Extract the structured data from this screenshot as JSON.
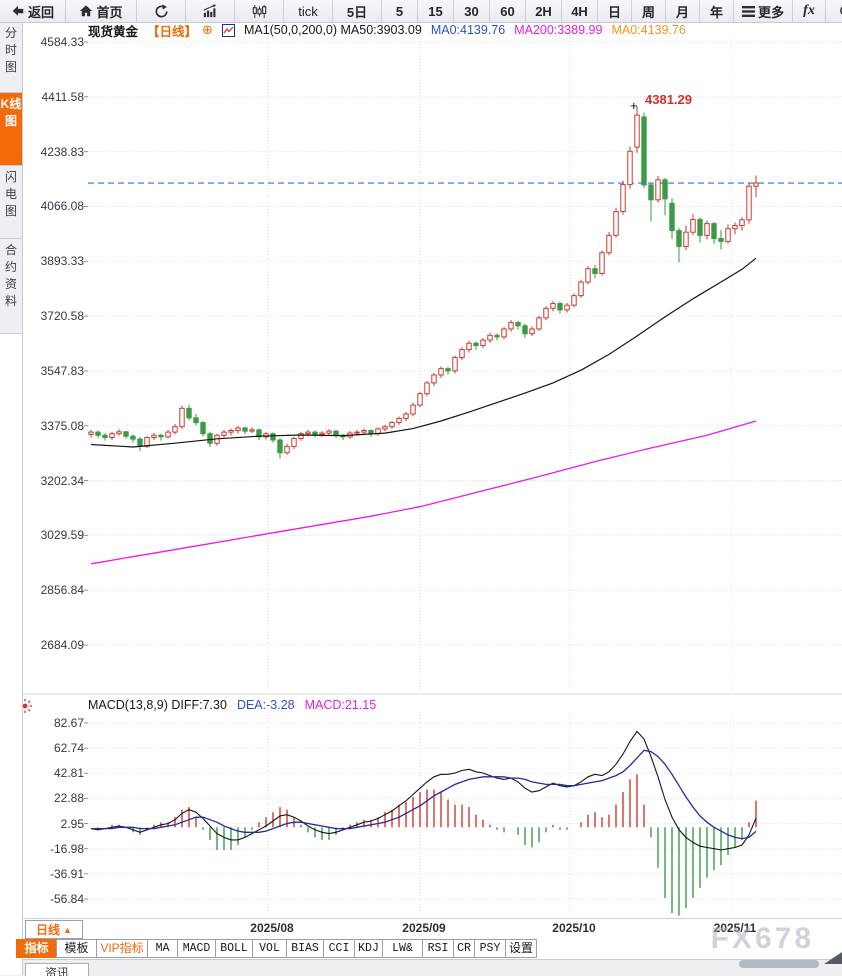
{
  "toolbar": {
    "items": [
      {
        "label": "返回",
        "icon": "back-icon"
      },
      {
        "label": "首页",
        "icon": "home-icon"
      },
      {
        "icon": "refresh-icon"
      },
      {
        "icon": "bar-chart-icon"
      },
      {
        "icon": "candle-chart-icon"
      },
      {
        "label": "tick"
      },
      {
        "label": "5日"
      },
      {
        "label": "5"
      },
      {
        "label": "15"
      },
      {
        "label": "30"
      },
      {
        "label": "60"
      },
      {
        "label": "2H"
      },
      {
        "label": "4H"
      },
      {
        "label": "日"
      },
      {
        "label": "周"
      },
      {
        "label": "月"
      },
      {
        "label": "年"
      },
      {
        "label": "更多",
        "icon": "menu-icon"
      },
      {
        "label": "fx",
        "icon": "fx-icon"
      },
      {
        "icon": "zoom-out-icon"
      },
      {
        "icon": "zoom-in-icon"
      }
    ]
  },
  "sidebar": {
    "tabs": [
      {
        "label": "分时图",
        "active": false
      },
      {
        "label": "K线图",
        "active": true
      },
      {
        "label": "闪电图",
        "active": false
      },
      {
        "label": "合约资料",
        "active": false
      }
    ]
  },
  "legend": {
    "symbol": "现货黄金",
    "period": "【日线】",
    "plus": "⊕",
    "ma_params": "MA1(50,0,200,0) MA50:3903.09",
    "ma0_blue": "MA0:4139.76",
    "ma200": "MA200:3389.99",
    "ma0_orange": "MA0:4139.76"
  },
  "macd_legend": {
    "params": "MACD(13,8,9) DIFF:7.30",
    "dea": "DEA:-3.28",
    "macd": "MACD:21.15"
  },
  "price_axis": [
    "4584.33",
    "4411.58",
    "4238.83",
    "4066.08",
    "3893.33",
    "3720.58",
    "3547.83",
    "3375.08",
    "3202.34",
    "3029.59",
    "2856.84",
    "2684.09"
  ],
  "macd_axis": [
    "82.67",
    "62.74",
    "42.81",
    "22.88",
    "2.95",
    "-16.98",
    "-36.91",
    "-56.84"
  ],
  "x_axis": {
    "period_label": "日线",
    "period_arrow": "▲",
    "labels": [
      "2025/08",
      "2025/09",
      "2025/10",
      "2025/11"
    ]
  },
  "annotation": {
    "text": "4381.29",
    "marker": "+"
  },
  "bottom": {
    "tabs": [
      "指标",
      "模板",
      "VIP指标",
      "MA",
      "MACD",
      "BOLL",
      "VOL",
      "BIAS",
      "CCI",
      "KDJ",
      "LW&",
      "RSI",
      "CR",
      "PSY",
      "设置"
    ]
  },
  "news_tab": "资讯",
  "watermark": "FX678",
  "colors": {
    "accent": "#f26a0a",
    "up": "#cd3a30",
    "down": "#3b9a46",
    "legend_blue": "#2b50c8",
    "legend_magenta": "#e11de1",
    "legend_orange": "#f7941d"
  },
  "chart_data": [
    {
      "type": "candlestick",
      "title": "现货黄金 日线",
      "ylim": [
        2684.09,
        4584.33
      ],
      "y_ticks": [
        4584.33,
        4411.58,
        4238.83,
        4066.08,
        3893.33,
        3720.58,
        3547.83,
        3375.08,
        3202.34,
        3029.59,
        2856.84,
        2684.09
      ],
      "x_tick_labels": [
        "2025/08",
        "2025/09",
        "2025/10",
        "2025/11"
      ],
      "month_x": [
        268,
        420,
        570,
        731
      ],
      "x_layout": {
        "start": 91,
        "step": 7
      },
      "current_price": 4139.76,
      "peak": {
        "value": 4381.29,
        "index": 78
      },
      "colors": {
        "up": "#cd3a30",
        "down": "#3b9a46",
        "ma50": "#141414",
        "ma200": "#ea1bea",
        "price_line": "#1a79e6"
      },
      "candles": [
        [
          3348,
          3362,
          3338,
          3355
        ],
        [
          3355,
          3360,
          3336,
          3345
        ],
        [
          3345,
          3352,
          3328,
          3338
        ],
        [
          3338,
          3356,
          3330,
          3350
        ],
        [
          3350,
          3364,
          3344,
          3356
        ],
        [
          3356,
          3358,
          3334,
          3342
        ],
        [
          3342,
          3348,
          3322,
          3333
        ],
        [
          3333,
          3340,
          3295,
          3310
        ],
        [
          3310,
          3342,
          3305,
          3338
        ],
        [
          3338,
          3352,
          3330,
          3345
        ],
        [
          3345,
          3350,
          3328,
          3340
        ],
        [
          3340,
          3362,
          3335,
          3355
        ],
        [
          3355,
          3380,
          3348,
          3372
        ],
        [
          3372,
          3438,
          3365,
          3430
        ],
        [
          3430,
          3442,
          3392,
          3400
        ],
        [
          3400,
          3412,
          3376,
          3385
        ],
        [
          3385,
          3390,
          3342,
          3350
        ],
        [
          3350,
          3356,
          3308,
          3320
        ],
        [
          3320,
          3350,
          3312,
          3345
        ],
        [
          3345,
          3362,
          3338,
          3355
        ],
        [
          3355,
          3366,
          3344,
          3360
        ],
        [
          3360,
          3375,
          3350,
          3368
        ],
        [
          3368,
          3372,
          3348,
          3358
        ],
        [
          3358,
          3370,
          3352,
          3362
        ],
        [
          3362,
          3366,
          3330,
          3340
        ],
        [
          3340,
          3355,
          3332,
          3350
        ],
        [
          3350,
          3354,
          3322,
          3330
        ],
        [
          3330,
          3336,
          3272,
          3290
        ],
        [
          3290,
          3318,
          3284,
          3310
        ],
        [
          3310,
          3340,
          3302,
          3335
        ],
        [
          3335,
          3356,
          3328,
          3350
        ],
        [
          3350,
          3362,
          3342,
          3355
        ],
        [
          3355,
          3360,
          3338,
          3348
        ],
        [
          3348,
          3358,
          3340,
          3352
        ],
        [
          3352,
          3364,
          3344,
          3358
        ],
        [
          3358,
          3362,
          3336,
          3345
        ],
        [
          3345,
          3350,
          3330,
          3340
        ],
        [
          3340,
          3358,
          3334,
          3352
        ],
        [
          3352,
          3362,
          3344,
          3355
        ],
        [
          3355,
          3366,
          3348,
          3360
        ],
        [
          3360,
          3364,
          3340,
          3350
        ],
        [
          3350,
          3370,
          3344,
          3365
        ],
        [
          3365,
          3378,
          3358,
          3372
        ],
        [
          3372,
          3390,
          3366,
          3385
        ],
        [
          3385,
          3404,
          3378,
          3398
        ],
        [
          3398,
          3418,
          3390,
          3412
        ],
        [
          3412,
          3448,
          3405,
          3440
        ],
        [
          3440,
          3482,
          3434,
          3476
        ],
        [
          3476,
          3516,
          3468,
          3510
        ],
        [
          3510,
          3542,
          3500,
          3535
        ],
        [
          3535,
          3562,
          3526,
          3555
        ],
        [
          3555,
          3560,
          3536,
          3548
        ],
        [
          3548,
          3596,
          3540,
          3590
        ],
        [
          3590,
          3622,
          3582,
          3615
        ],
        [
          3615,
          3642,
          3606,
          3635
        ],
        [
          3635,
          3640,
          3614,
          3628
        ],
        [
          3628,
          3652,
          3620,
          3645
        ],
        [
          3645,
          3668,
          3636,
          3660
        ],
        [
          3660,
          3666,
          3644,
          3655
        ],
        [
          3655,
          3686,
          3648,
          3680
        ],
        [
          3680,
          3708,
          3672,
          3700
        ],
        [
          3700,
          3706,
          3678,
          3690
        ],
        [
          3690,
          3696,
          3652,
          3665
        ],
        [
          3665,
          3688,
          3658,
          3680
        ],
        [
          3680,
          3722,
          3674,
          3715
        ],
        [
          3715,
          3752,
          3708,
          3745
        ],
        [
          3745,
          3768,
          3736,
          3760
        ],
        [
          3760,
          3766,
          3728,
          3740
        ],
        [
          3740,
          3762,
          3732,
          3755
        ],
        [
          3755,
          3792,
          3748,
          3785
        ],
        [
          3785,
          3835,
          3778,
          3828
        ],
        [
          3828,
          3878,
          3820,
          3870
        ],
        [
          3870,
          3882,
          3840,
          3855
        ],
        [
          3855,
          3928,
          3848,
          3920
        ],
        [
          3920,
          3985,
          3912,
          3975
        ],
        [
          3975,
          4062,
          3968,
          4050
        ],
        [
          4050,
          4148,
          4040,
          4135
        ],
        [
          4135,
          4255,
          4122,
          4240
        ],
        [
          4253,
          4381,
          4235,
          4354
        ],
        [
          4348,
          4362,
          4124,
          4134
        ],
        [
          4134,
          4140,
          4019,
          4087
        ],
        [
          4087,
          4162,
          4078,
          4150
        ],
        [
          4150,
          4156,
          4038,
          4090
        ],
        [
          4076,
          4092,
          3964,
          3990
        ],
        [
          3990,
          3998,
          3890,
          3940
        ],
        [
          3940,
          4006,
          3928,
          3985
        ],
        [
          3985,
          4042,
          3976,
          4025
        ],
        [
          4025,
          4032,
          3952,
          3975
        ],
        [
          3975,
          4022,
          3962,
          4012
        ],
        [
          4012,
          4018,
          3948,
          3965
        ],
        [
          3965,
          3992,
          3930,
          3956
        ],
        [
          3956,
          4010,
          3948,
          3996
        ],
        [
          3996,
          4016,
          3978,
          4006
        ],
        [
          4006,
          4032,
          3990,
          4024
        ],
        [
          4024,
          4142,
          4012,
          4130
        ],
        [
          4130,
          4164,
          4096,
          4140
        ]
      ],
      "ma50": [
        [
          0,
          3316
        ],
        [
          6,
          3308
        ],
        [
          12,
          3320
        ],
        [
          18,
          3334
        ],
        [
          24,
          3342
        ],
        [
          30,
          3346
        ],
        [
          36,
          3344
        ],
        [
          42,
          3352
        ],
        [
          46,
          3366
        ],
        [
          50,
          3390
        ],
        [
          54,
          3418
        ],
        [
          58,
          3448
        ],
        [
          62,
          3478
        ],
        [
          66,
          3510
        ],
        [
          70,
          3550
        ],
        [
          74,
          3600
        ],
        [
          78,
          3658
        ],
        [
          82,
          3718
        ],
        [
          86,
          3775
        ],
        [
          90,
          3828
        ],
        [
          93,
          3868
        ],
        [
          95,
          3903
        ]
      ],
      "ma200": [
        [
          0,
          2940
        ],
        [
          8,
          2970
        ],
        [
          16,
          3000
        ],
        [
          24,
          3030
        ],
        [
          32,
          3060
        ],
        [
          40,
          3090
        ],
        [
          47,
          3120
        ],
        [
          56,
          3170
        ],
        [
          64,
          3215
        ],
        [
          72,
          3262
        ],
        [
          80,
          3305
        ],
        [
          88,
          3345
        ],
        [
          95,
          3390
        ]
      ]
    },
    {
      "type": "macd",
      "params": [
        13,
        8,
        9
      ],
      "ylim": [
        -56.84,
        82.67
      ],
      "y_ticks": [
        82.67,
        62.74,
        42.81,
        22.88,
        2.95,
        -16.98,
        -36.91,
        -56.84
      ],
      "last": {
        "diff": 7.3,
        "dea": -3.28,
        "macd": 21.15
      },
      "colors": {
        "diff": "#141414",
        "dea": "#1d2f9e",
        "pos": "#cd3a30",
        "neg": "#3b9a46"
      },
      "diff": [
        -1,
        -2,
        -1,
        0,
        1,
        0,
        -2,
        -4,
        -2,
        0,
        2,
        3,
        6,
        11,
        14,
        12,
        7,
        1,
        -5,
        -8,
        -10,
        -10,
        -8,
        -5,
        -2,
        1,
        5,
        9,
        10,
        8,
        5,
        1,
        -2,
        -4,
        -5,
        -4,
        -2,
        0,
        2,
        4,
        5,
        7,
        10,
        13,
        17,
        21,
        26,
        31,
        36,
        40,
        42,
        42,
        43,
        45,
        46,
        44,
        43,
        41,
        39,
        38,
        39,
        36,
        31,
        28,
        29,
        32,
        35,
        33,
        32,
        33,
        36,
        40,
        42,
        41,
        44,
        50,
        58,
        68,
        76,
        70,
        56,
        40,
        22,
        8,
        -2,
        -8,
        -12,
        -15,
        -16,
        -17,
        -18,
        -17,
        -16,
        -14,
        -6,
        7.3
      ],
      "dea": [
        -1,
        -1,
        -1,
        -1,
        0,
        0,
        0,
        -1,
        -1,
        -1,
        0,
        1,
        2,
        4,
        6,
        8,
        8,
        6,
        4,
        1,
        -1,
        -3,
        -4,
        -4,
        -4,
        -3,
        -1,
        1,
        3,
        4,
        4,
        3,
        2,
        1,
        0,
        -1,
        -1,
        -1,
        0,
        1,
        2,
        3,
        4,
        6,
        8,
        11,
        14,
        17,
        21,
        25,
        28,
        31,
        34,
        36,
        38,
        39,
        40,
        40,
        40,
        40,
        39,
        39,
        38,
        36,
        35,
        34,
        34,
        34,
        33,
        33,
        34,
        35,
        36,
        37,
        39,
        41,
        44,
        49,
        55,
        61,
        60,
        56,
        50,
        42,
        33,
        24,
        16,
        9,
        4,
        0,
        -3,
        -6,
        -8,
        -9,
        -8,
        -3.28
      ]
    }
  ]
}
